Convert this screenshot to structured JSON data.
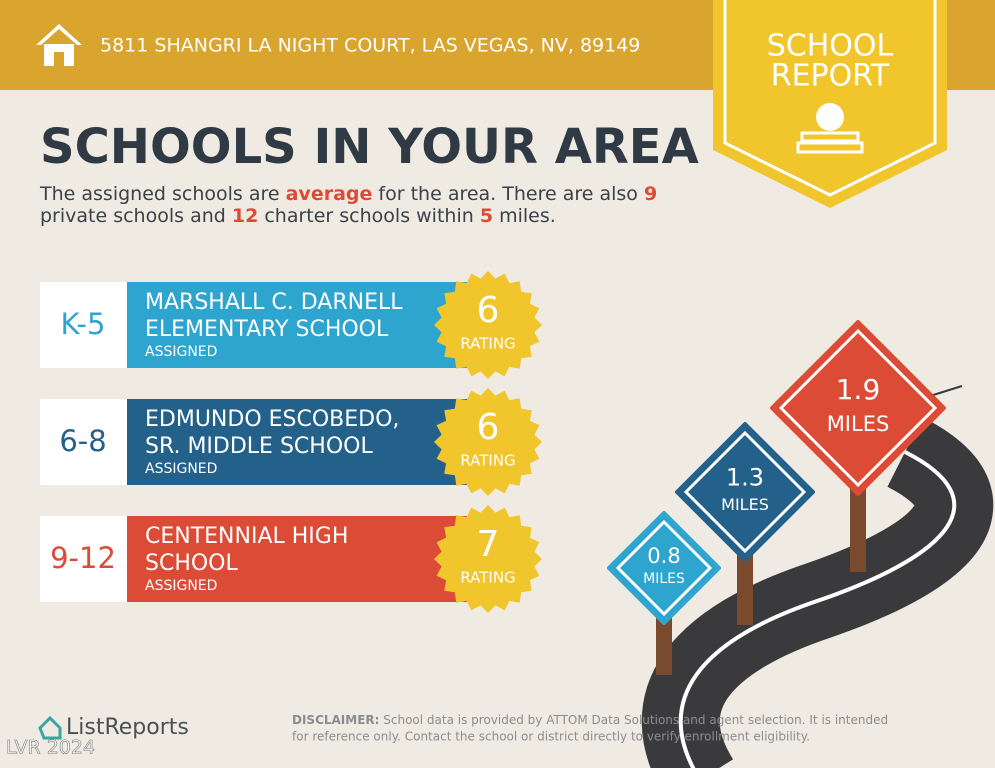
{
  "header": {
    "address": "5811 SHANGRI LA NIGHT COURT, LAS VEGAS, NV, 89149"
  },
  "badge": {
    "line1": "SCHOOL",
    "line2": "REPORT"
  },
  "title": "SCHOOLS IN YOUR AREA",
  "intro": {
    "lines": [
      {
        "parts": [
          {
            "text": "The assigned schools are ",
            "highlight": false
          },
          {
            "text": "average",
            "highlight": true
          },
          {
            "text": " for the area. There are also ",
            "highlight": false
          },
          {
            "text": 9,
            "highlight": true
          }
        ]
      },
      {
        "parts": [
          {
            "text": "private schools and ",
            "highlight": false
          },
          {
            "text": 12,
            "highlight": true
          },
          {
            "text": " charter schools within ",
            "highlight": false
          },
          {
            "text": 5,
            "highlight": true
          },
          {
            "text": " miles.",
            "highlight": false
          }
        ]
      }
    ]
  },
  "schools": [
    {
      "grades": "K-5",
      "name_lines": [
        "MARSHALL C. DARNELL",
        "ELEMENTARY SCHOOL"
      ],
      "status": "ASSIGNED",
      "rating": 6,
      "rating_label": "RATING",
      "color": "#2ea5cf"
    },
    {
      "grades": "6-8",
      "name_lines": [
        "EDMUNDO ESCOBEDO,",
        "SR. MIDDLE SCHOOL"
      ],
      "status": "ASSIGNED",
      "rating": 6,
      "rating_label": "RATING",
      "color": "#23618a"
    },
    {
      "grades": "9-12",
      "name_lines": [
        "CENTENNIAL HIGH",
        "SCHOOL"
      ],
      "status": "ASSIGNED",
      "rating": 7,
      "rating_label": "RATING",
      "color": "#dc4b35"
    }
  ],
  "signs": [
    {
      "distance": 0.8,
      "unit": "MILES",
      "color": "#2ea5cf"
    },
    {
      "distance": 1.3,
      "unit": "MILES",
      "color": "#23618a"
    },
    {
      "distance": 1.9,
      "unit": "MILES",
      "color": "#dc4b35"
    }
  ],
  "footer": {
    "logo": "ListReports",
    "disclaimer_label": "DISCLAIMER:",
    "disclaimer_line1": " School data is provided by ATTOM Data Solutions and agent selection. It is intended",
    "disclaimer_line2": "for reference only. Contact the school or district directly to verify enrollment eligibility.",
    "watermark": "LVR 2024"
  }
}
